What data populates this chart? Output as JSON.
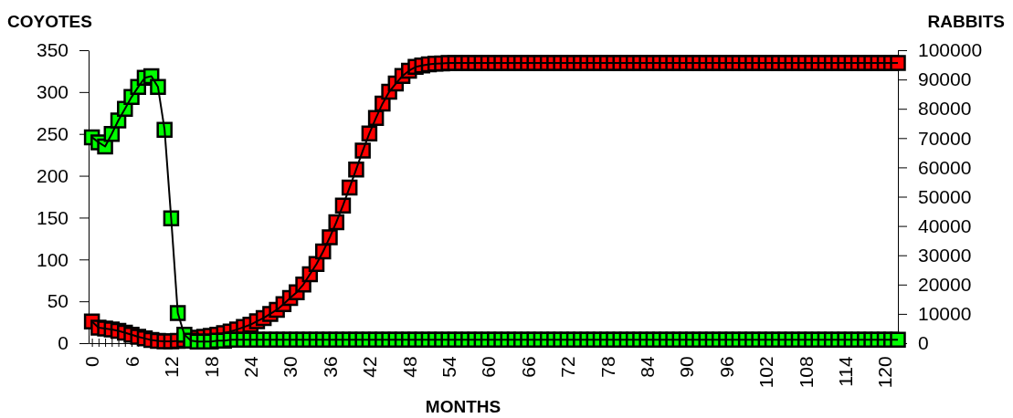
{
  "chart_data": {
    "type": "line",
    "xlabel": "MONTHS",
    "ylabel": "COYOTES",
    "y2label": "RABBITS",
    "marker": "square",
    "line_style": "solid",
    "grid": false,
    "legend": false,
    "x": [
      0,
      1,
      2,
      3,
      4,
      5,
      6,
      7,
      8,
      9,
      10,
      11,
      12,
      13,
      14,
      15,
      16,
      17,
      18,
      19,
      20,
      21,
      22,
      23,
      24,
      25,
      26,
      27,
      28,
      29,
      30,
      31,
      32,
      33,
      34,
      35,
      36,
      37,
      38,
      39,
      40,
      41,
      42,
      43,
      44,
      45,
      46,
      47,
      48,
      49,
      50,
      51,
      52,
      53,
      54,
      55,
      56,
      57,
      58,
      59,
      60,
      61,
      62,
      63,
      64,
      65,
      66,
      67,
      68,
      69,
      70,
      71,
      72,
      73,
      74,
      75,
      76,
      77,
      78,
      79,
      80,
      81,
      82,
      83,
      84,
      85,
      86,
      87,
      88,
      89,
      90,
      91,
      92,
      93,
      94,
      95,
      96,
      97,
      98,
      99,
      100,
      101,
      102,
      103,
      104,
      105,
      106,
      107,
      108,
      109,
      110,
      111,
      112,
      113,
      114,
      115,
      116,
      117,
      118,
      119,
      120,
      121,
      122
    ],
    "xlim": [
      -0.5,
      122
    ],
    "xticks": [
      0,
      {
        "value": 1,
        "label": null
      },
      {
        "value": 2,
        "label": null
      },
      {
        "value": 3,
        "label": null
      },
      {
        "value": 4,
        "label": null
      },
      {
        "value": 5,
        "label": null
      },
      6,
      {
        "value": 7,
        "label": null
      },
      {
        "value": 8,
        "label": null
      },
      {
        "value": 9,
        "label": null
      },
      {
        "value": 10,
        "label": null
      },
      {
        "value": 11,
        "label": null
      },
      12,
      {
        "value": 13,
        "label": null
      },
      {
        "value": 14,
        "label": null
      },
      {
        "value": 15,
        "label": null
      },
      {
        "value": 16,
        "label": null
      },
      {
        "value": 17,
        "label": null
      },
      18,
      {
        "value": 19,
        "label": null
      },
      {
        "value": 20,
        "label": null
      },
      {
        "value": 21,
        "label": null
      },
      {
        "value": 22,
        "label": null
      },
      {
        "value": 23,
        "label": null
      },
      24,
      {
        "value": 25,
        "label": null
      },
      {
        "value": 26,
        "label": null
      },
      {
        "value": 27,
        "label": null
      },
      {
        "value": 28,
        "label": null
      },
      {
        "value": 29,
        "label": null
      },
      30,
      {
        "value": 31,
        "label": null
      },
      {
        "value": 32,
        "label": null
      },
      {
        "value": 33,
        "label": null
      },
      {
        "value": 34,
        "label": null
      },
      {
        "value": 35,
        "label": null
      },
      36,
      {
        "value": 37,
        "label": null
      },
      {
        "value": 38,
        "label": null
      },
      {
        "value": 39,
        "label": null
      },
      {
        "value": 40,
        "label": null
      },
      {
        "value": 41,
        "label": null
      },
      42,
      {
        "value": 43,
        "label": null
      },
      {
        "value": 44,
        "label": null
      },
      {
        "value": 45,
        "label": null
      },
      {
        "value": 46,
        "label": null
      },
      {
        "value": 47,
        "label": null
      },
      48,
      {
        "value": 49,
        "label": null
      },
      {
        "value": 50,
        "label": null
      },
      {
        "value": 51,
        "label": null
      },
      {
        "value": 52,
        "label": null
      },
      {
        "value": 53,
        "label": null
      },
      54,
      {
        "value": 55,
        "label": null
      },
      {
        "value": 56,
        "label": null
      },
      {
        "value": 57,
        "label": null
      },
      {
        "value": 58,
        "label": null
      },
      {
        "value": 59,
        "label": null
      },
      60,
      {
        "value": 61,
        "label": null
      },
      {
        "value": 62,
        "label": null
      },
      {
        "value": 63,
        "label": null
      },
      {
        "value": 64,
        "label": null
      },
      {
        "value": 65,
        "label": null
      },
      66,
      {
        "value": 67,
        "label": null
      },
      {
        "value": 68,
        "label": null
      },
      {
        "value": 69,
        "label": null
      },
      {
        "value": 70,
        "label": null
      },
      {
        "value": 71,
        "label": null
      },
      72,
      {
        "value": 73,
        "label": null
      },
      {
        "value": 74,
        "label": null
      },
      {
        "value": 75,
        "label": null
      },
      {
        "value": 76,
        "label": null
      },
      {
        "value": 77,
        "label": null
      },
      78,
      {
        "value": 79,
        "label": null
      },
      {
        "value": 80,
        "label": null
      },
      {
        "value": 81,
        "label": null
      },
      {
        "value": 82,
        "label": null
      },
      {
        "value": 83,
        "label": null
      },
      84,
      {
        "value": 85,
        "label": null
      },
      {
        "value": 86,
        "label": null
      },
      {
        "value": 87,
        "label": null
      },
      {
        "value": 88,
        "label": null
      },
      {
        "value": 89,
        "label": null
      },
      90,
      {
        "value": 91,
        "label": null
      },
      {
        "value": 92,
        "label": null
      },
      {
        "value": 93,
        "label": null
      },
      {
        "value": 94,
        "label": null
      },
      {
        "value": 95,
        "label": null
      },
      96,
      {
        "value": 97,
        "label": null
      },
      {
        "value": 98,
        "label": null
      },
      {
        "value": 99,
        "label": null
      },
      {
        "value": 100,
        "label": null
      },
      {
        "value": 101,
        "label": null
      },
      102,
      {
        "value": 103,
        "label": null
      },
      {
        "value": 104,
        "label": null
      },
      {
        "value": 105,
        "label": null
      },
      {
        "value": 106,
        "label": null
      },
      {
        "value": 107,
        "label": null
      },
      108,
      {
        "value": 109,
        "label": null
      },
      {
        "value": 110,
        "label": null
      },
      {
        "value": 111,
        "label": null
      },
      {
        "value": 112,
        "label": null
      },
      {
        "value": 113,
        "label": null
      },
      114,
      {
        "value": 115,
        "label": null
      },
      {
        "value": 116,
        "label": null
      },
      {
        "value": 117,
        "label": null
      },
      {
        "value": 118,
        "label": null
      },
      {
        "value": 119,
        "label": null
      },
      120,
      {
        "value": 121,
        "label": null
      },
      {
        "value": 122,
        "label": null
      }
    ],
    "ylim": [
      0,
      350
    ],
    "yticks": [
      0,
      50,
      100,
      150,
      200,
      250,
      300,
      350
    ],
    "y2lim": [
      0,
      100000
    ],
    "y2ticks": [
      0,
      10000,
      20000,
      30000,
      40000,
      50000,
      60000,
      70000,
      80000,
      90000,
      100000
    ],
    "series": [
      {
        "color": "#00ff00",
        "values": [
          246,
          240,
          235,
          250,
          266,
          280,
          294,
          306,
          317,
          319,
          306,
          255,
          149,
          36,
          10,
          3,
          2,
          2,
          2,
          3,
          3,
          4,
          4,
          4,
          4,
          4,
          4,
          4,
          4,
          4,
          4,
          4,
          4,
          4,
          4,
          4,
          4,
          4,
          4,
          4,
          4,
          4,
          4,
          4,
          4,
          4,
          4,
          4,
          4,
          4,
          4,
          4,
          4,
          4,
          4,
          4,
          4,
          4,
          4,
          4,
          4,
          4,
          4,
          4,
          4,
          4,
          4,
          4,
          4,
          4,
          4,
          4,
          4,
          4,
          4,
          4,
          4,
          4,
          4,
          4,
          4,
          4,
          4,
          4,
          4,
          4,
          4,
          4,
          4,
          4,
          4,
          4,
          4,
          4,
          4,
          4,
          4,
          4,
          4,
          4,
          4,
          4,
          4,
          4,
          4,
          4,
          4,
          4,
          4,
          4,
          4,
          4,
          4,
          4,
          4,
          4,
          4,
          4,
          4,
          4,
          4,
          4,
          4
        ]
      },
      {
        "color": "#ff0000",
        "axis": "y2",
        "values": [
          7400,
          5300,
          5000,
          4700,
          4200,
          3600,
          2900,
          2200,
          1600,
          1100,
          800,
          600,
          600,
          800,
          1100,
          1600,
          1900,
          2200,
          2500,
          2900,
          3400,
          4000,
          4700,
          5500,
          6300,
          7500,
          8600,
          10000,
          11400,
          13300,
          15400,
          17400,
          20000,
          23500,
          27000,
          31300,
          36100,
          41300,
          47000,
          53100,
          59300,
          65700,
          71600,
          76900,
          81800,
          85800,
          88600,
          91200,
          93000,
          94300,
          94800,
          95200,
          95400,
          95500,
          95600,
          95600,
          95600,
          95600,
          95600,
          95600,
          95600,
          95600,
          95600,
          95600,
          95600,
          95600,
          95600,
          95600,
          95600,
          95600,
          95600,
          95600,
          95600,
          95600,
          95600,
          95600,
          95600,
          95600,
          95600,
          95600,
          95600,
          95600,
          95600,
          95600,
          95600,
          95600,
          95600,
          95600,
          95600,
          95600,
          95600,
          95600,
          95600,
          95600,
          95600,
          95600,
          95600,
          95600,
          95600,
          95600,
          95600,
          95600,
          95600,
          95600,
          95600,
          95600,
          95600,
          95600,
          95600,
          95600,
          95600,
          95600,
          95600,
          95600,
          95600,
          95600,
          95600,
          95600,
          95600,
          95600,
          95600,
          95600,
          95600
        ]
      }
    ]
  }
}
